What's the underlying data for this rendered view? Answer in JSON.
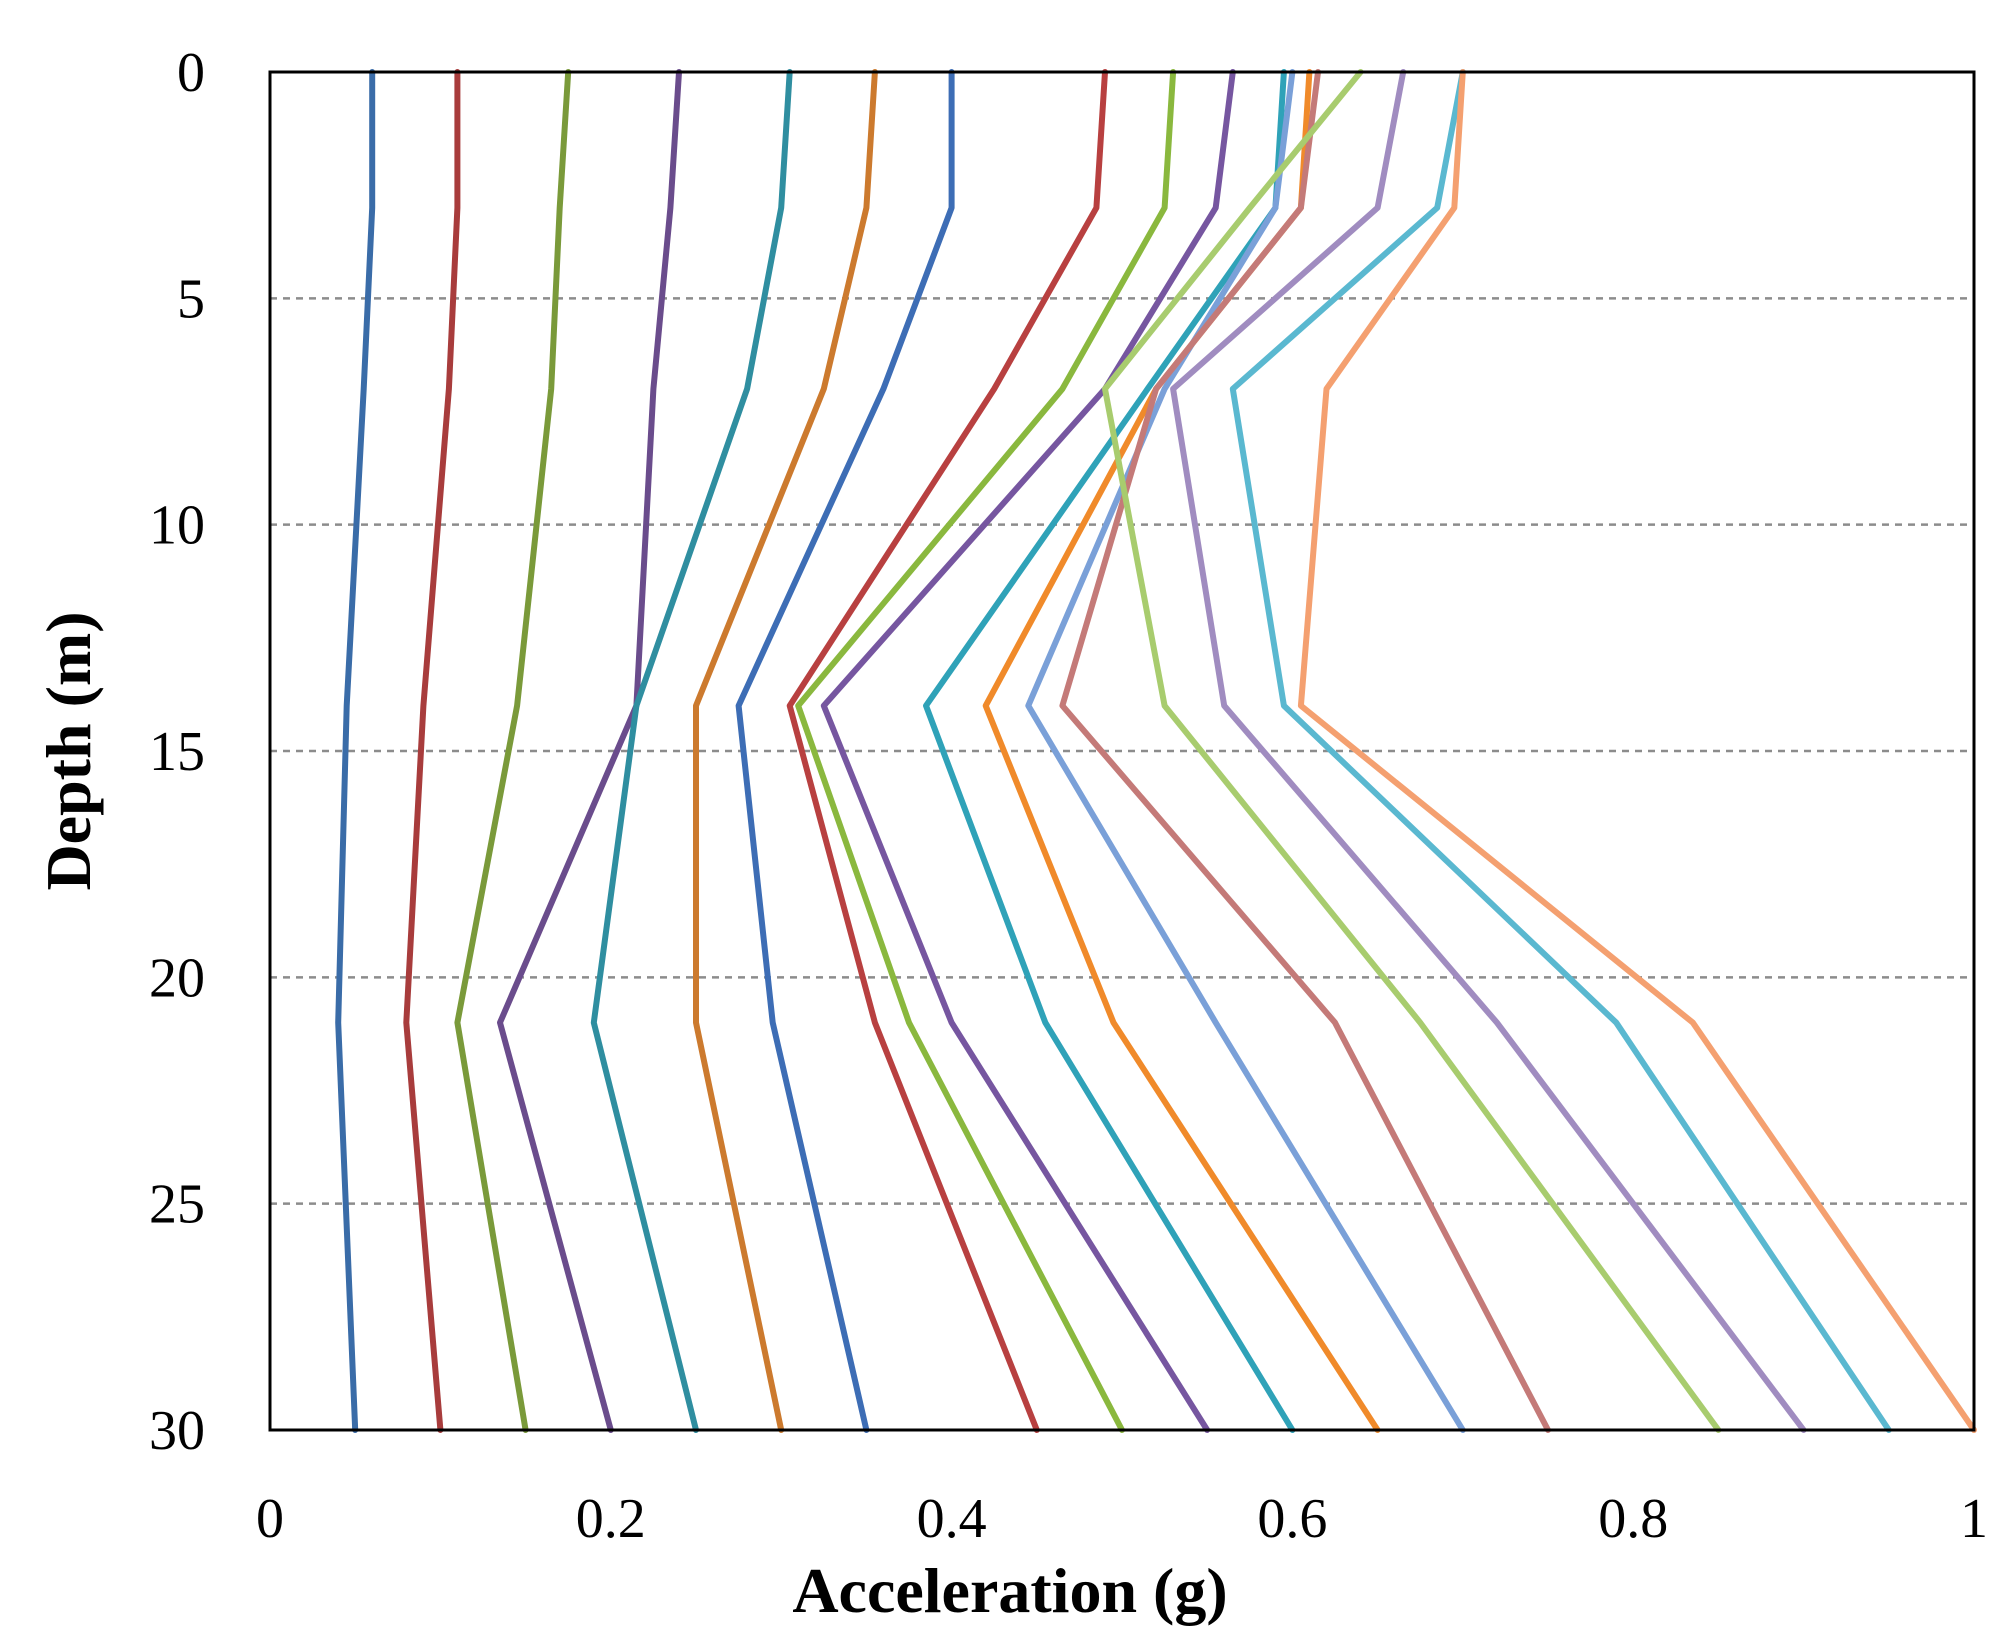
{
  "chart_data": {
    "type": "line",
    "orientation": "depth-profile",
    "title": "",
    "xlabel": "Acceleration (g)",
    "ylabel": "Depth (m)",
    "xlim": [
      0,
      1
    ],
    "ylim": [
      0,
      30
    ],
    "y_inverted": true,
    "x_ticks": [
      {
        "value": 0,
        "label": "0"
      },
      {
        "value": 0.2,
        "label": "0.2"
      },
      {
        "value": 0.4,
        "label": "0.4"
      },
      {
        "value": 0.6,
        "label": "0.6"
      },
      {
        "value": 0.8,
        "label": "0.8"
      },
      {
        "value": 1,
        "label": "1"
      }
    ],
    "y_ticks": [
      {
        "value": 0,
        "label": "0"
      },
      {
        "value": 5,
        "label": "5"
      },
      {
        "value": 10,
        "label": "10"
      },
      {
        "value": 15,
        "label": "15"
      },
      {
        "value": 20,
        "label": "20"
      },
      {
        "value": 25,
        "label": "25"
      },
      {
        "value": 30,
        "label": "30"
      }
    ],
    "grid": {
      "horizontal_dashed_at": [
        5,
        10,
        15,
        20,
        25
      ],
      "vertical": false
    },
    "legend": "none",
    "depths": [
      0,
      3,
      7,
      14,
      21,
      30
    ],
    "series": [
      {
        "name": "s1",
        "color": "#3a6ca8",
        "values": [
          0.06,
          0.06,
          0.055,
          0.045,
          0.04,
          0.05
        ]
      },
      {
        "name": "s2",
        "color": "#a83c3c",
        "values": [
          0.11,
          0.11,
          0.105,
          0.09,
          0.08,
          0.1
        ]
      },
      {
        "name": "s3",
        "color": "#7a9a3a",
        "values": [
          0.175,
          0.17,
          0.165,
          0.145,
          0.11,
          0.15
        ]
      },
      {
        "name": "s4",
        "color": "#6a4c8c",
        "values": [
          0.24,
          0.235,
          0.225,
          0.215,
          0.135,
          0.2
        ]
      },
      {
        "name": "s5",
        "color": "#2f8ea0",
        "values": [
          0.305,
          0.3,
          0.28,
          0.215,
          0.19,
          0.25
        ]
      },
      {
        "name": "s6",
        "color": "#cc7a2e",
        "values": [
          0.355,
          0.35,
          0.325,
          0.25,
          0.25,
          0.3
        ]
      },
      {
        "name": "s7",
        "color": "#3d6db5",
        "values": [
          0.4,
          0.4,
          0.36,
          0.275,
          0.295,
          0.35
        ]
      },
      {
        "name": "s8",
        "color": "#b84040",
        "values": [
          0.49,
          0.485,
          0.425,
          0.305,
          0.355,
          0.45
        ]
      },
      {
        "name": "s9",
        "color": "#8ab83e",
        "values": [
          0.53,
          0.525,
          0.465,
          0.31,
          0.375,
          0.5
        ]
      },
      {
        "name": "s10",
        "color": "#7656a0",
        "values": [
          0.565,
          0.555,
          0.49,
          0.325,
          0.4,
          0.55
        ]
      },
      {
        "name": "s11",
        "color": "#2fa2b8",
        "values": [
          0.595,
          0.59,
          0.515,
          0.385,
          0.455,
          0.6
        ]
      },
      {
        "name": "s12",
        "color": "#f08a2a",
        "values": [
          0.61,
          0.605,
          0.52,
          0.42,
          0.495,
          0.65
        ]
      },
      {
        "name": "s13",
        "color": "#7aa0d8",
        "values": [
          0.6,
          0.59,
          0.525,
          0.445,
          0.555,
          0.7
        ]
      },
      {
        "name": "s14",
        "color": "#c47a78",
        "values": [
          0.615,
          0.605,
          0.52,
          0.465,
          0.625,
          0.75
        ]
      },
      {
        "name": "s15",
        "color": "#a8cc6e",
        "values": [
          0.64,
          0.575,
          0.49,
          0.525,
          0.675,
          0.85
        ]
      },
      {
        "name": "s16",
        "color": "#a08cc0",
        "values": [
          0.665,
          0.65,
          0.53,
          0.56,
          0.72,
          0.9
        ]
      },
      {
        "name": "s17",
        "color": "#5ab8d0",
        "values": [
          0.7,
          0.685,
          0.565,
          0.595,
          0.79,
          0.95
        ]
      },
      {
        "name": "s18",
        "color": "#f4a070",
        "values": [
          0.7,
          0.695,
          0.62,
          0.605,
          0.835,
          1.0
        ]
      }
    ]
  }
}
